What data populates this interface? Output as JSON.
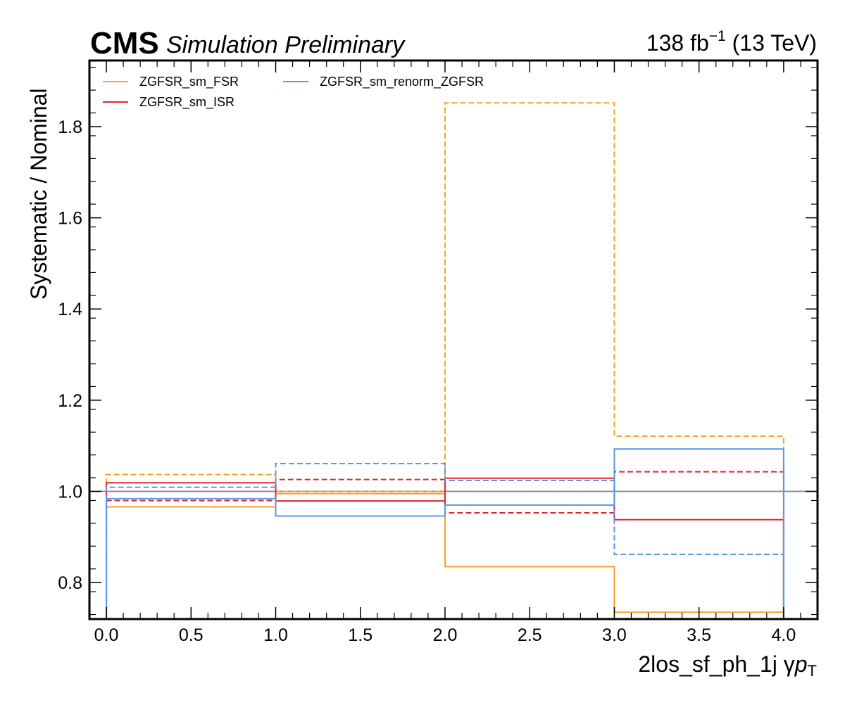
{
  "header": {
    "experiment": "CMS",
    "status": "Simulation Preliminary",
    "lumi_value": "138 fb",
    "lumi_exp": "−1",
    "lumi_energy": " (13 TeV)"
  },
  "axis_titles": {
    "ylabel": "Systematic / Nominal",
    "xlabel_main": "2los_sf_ph_1j   γ",
    "xlabel_var": "p",
    "xlabel_sub": "T"
  },
  "colors": {
    "fsr": "#f5a22b",
    "isr": "#e3262e",
    "renorm": "#5a97e8",
    "nominal_line": "#8c8c8c"
  },
  "chart_data": {
    "type": "line",
    "style": "step",
    "xlim": [
      -0.1,
      4.2
    ],
    "ylim": [
      0.72,
      1.945
    ],
    "x_ticks": [
      "0.0",
      "0.5",
      "1.0",
      "1.5",
      "2.0",
      "2.5",
      "3.0",
      "3.5",
      "4.0"
    ],
    "y_ticks": [
      "0.8",
      "1.0",
      "1.2",
      "1.4",
      "1.6",
      "1.8"
    ],
    "bin_edges": [
      0,
      1,
      2,
      3,
      4
    ],
    "reference_line": 1.0,
    "legend_location": "top-left",
    "series": [
      {
        "name": "ZGFSR_sm_FSR",
        "color": "#f5a22b",
        "variation": "up",
        "dash": true,
        "values": [
          1.037,
          1.0,
          1.852,
          1.121
        ]
      },
      {
        "name": "ZGFSR_sm_FSR",
        "color": "#f5a22b",
        "variation": "down",
        "dash": false,
        "values": [
          0.966,
          0.995,
          0.835,
          0.735
        ]
      },
      {
        "name": "ZGFSR_sm_ISR",
        "color": "#e3262e",
        "variation": "up",
        "dash": true,
        "values": [
          0.98,
          1.026,
          0.953,
          1.043
        ]
      },
      {
        "name": "ZGFSR_sm_ISR",
        "color": "#e3262e",
        "variation": "down",
        "dash": false,
        "values": [
          1.019,
          0.979,
          1.029,
          0.938
        ]
      },
      {
        "name": "ZGFSR_sm_renorm_ZGFSR",
        "color": "#5a97e8",
        "variation": "up",
        "dash": true,
        "values": [
          1.009,
          1.061,
          1.024,
          0.862
        ]
      },
      {
        "name": "ZGFSR_sm_renorm_ZGFSR",
        "color": "#5a97e8",
        "variation": "down",
        "dash": false,
        "values": [
          0.984,
          0.946,
          0.97,
          1.093
        ]
      }
    ],
    "legend": [
      {
        "label": "ZGFSR_sm_FSR",
        "color": "#f5a22b"
      },
      {
        "label": "ZGFSR_sm_ISR",
        "color": "#e3262e"
      },
      {
        "label": "ZGFSR_sm_renorm_ZGFSR",
        "color": "#5a97e8"
      }
    ]
  }
}
